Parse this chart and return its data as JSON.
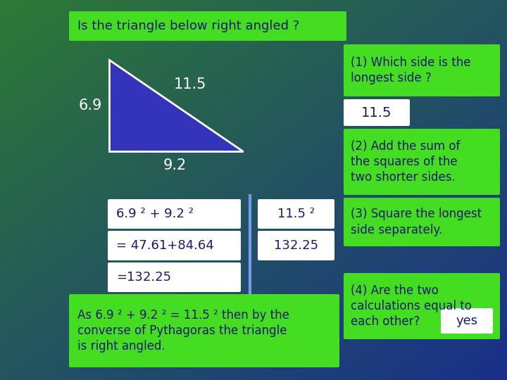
{
  "title": "Is the triangle below right angled ?",
  "bg_grad_topleft": "#2d7a35",
  "bg_grad_botright": "#1a2f8a",
  "bright_green": "#44dd22",
  "blue_triangle": "#3333bb",
  "navy_text": "#1a1a6e",
  "white": "#ffffff",
  "side_hyp": "11.5",
  "side_left": "6.9",
  "side_bottom": "9.2",
  "box1_text": "(1) Which side is the\nlongest side ?",
  "box1_answer": "11.5",
  "box2_text": "(2) Add the sum of\nthe squares of the\ntwo shorter sides.",
  "box3_text": "(3) Square the longest\nside separately.",
  "box4_text": "(4) Are the two\ncalculations equal to\neach other?",
  "box4_answer": "yes",
  "calc_left1": "6.9 ² + 9.2 ²",
  "calc_left2": "= 47.61+84.64",
  "calc_left3": "=132.25",
  "calc_right1": "11.5 ²",
  "calc_right2": "132.25",
  "bottom_text": "As 6.9 ² + 9.2 ² = 11.5 ² then by the\nconverse of Pythagoras the triangle\nis right angled."
}
